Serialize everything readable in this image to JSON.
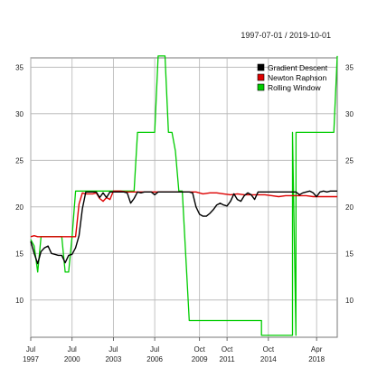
{
  "header": {
    "date_range": "1997-07-01 / 2019-10-01"
  },
  "chart_data": {
    "type": "line",
    "title": "",
    "xlabel": "",
    "ylabel": "",
    "x_axis": {
      "type": "date",
      "range": [
        "1997-07-01",
        "2019-10-01"
      ],
      "ticks": [
        {
          "date": "1997-07-01",
          "month": "Jul",
          "year": "1997"
        },
        {
          "date": "2000-07-01",
          "month": "Jul",
          "year": "2000"
        },
        {
          "date": "2003-07-01",
          "month": "Jul",
          "year": "2003"
        },
        {
          "date": "2006-07-01",
          "month": "Jul",
          "year": "2006"
        },
        {
          "date": "2009-10-01",
          "month": "Oct",
          "year": "2009"
        },
        {
          "date": "2011-10-01",
          "month": "Oct",
          "year": "2011"
        },
        {
          "date": "2014-10-01",
          "month": "Oct",
          "year": "2014"
        },
        {
          "date": "2018-04-01",
          "month": "Apr",
          "year": "2018"
        }
      ]
    },
    "y_axis": {
      "range": [
        6,
        36
      ],
      "ticks": [
        10,
        15,
        20,
        25,
        30,
        35
      ],
      "sides": [
        "left",
        "right"
      ]
    },
    "grid": true,
    "legend": {
      "placement": "top-right",
      "entries": [
        {
          "label": "Gradient Descent",
          "color": "#000000"
        },
        {
          "label": "Newton Raphson",
          "color": "#dd0000"
        },
        {
          "label": "Rolling Window",
          "color": "#00cc00"
        }
      ]
    },
    "series": [
      {
        "name": "Gradient Descent",
        "color": "#000000",
        "points": [
          [
            "1997-07-01",
            16.3
          ],
          [
            "1997-10-01",
            15.0
          ],
          [
            "1998-01-01",
            13.9
          ],
          [
            "1998-04-01",
            15.2
          ],
          [
            "1998-07-01",
            15.6
          ],
          [
            "1998-10-01",
            15.8
          ],
          [
            "1999-01-01",
            15.0
          ],
          [
            "1999-04-01",
            14.9
          ],
          [
            "1999-07-01",
            14.8
          ],
          [
            "1999-10-01",
            14.8
          ],
          [
            "2000-01-01",
            14.0
          ],
          [
            "2000-04-01",
            14.8
          ],
          [
            "2000-07-01",
            14.9
          ],
          [
            "2000-10-01",
            15.6
          ],
          [
            "2001-01-01",
            16.9
          ],
          [
            "2001-04-01",
            19.8
          ],
          [
            "2001-07-01",
            21.6
          ],
          [
            "2001-10-01",
            21.6
          ],
          [
            "2002-01-01",
            21.6
          ],
          [
            "2002-04-01",
            21.6
          ],
          [
            "2002-07-01",
            21.0
          ],
          [
            "2002-10-01",
            21.5
          ],
          [
            "2003-01-01",
            21.0
          ],
          [
            "2003-04-01",
            21.6
          ],
          [
            "2003-07-01",
            21.6
          ],
          [
            "2003-10-01",
            21.6
          ],
          [
            "2004-01-01",
            21.6
          ],
          [
            "2004-04-01",
            21.6
          ],
          [
            "2004-07-01",
            21.5
          ],
          [
            "2004-10-01",
            20.4
          ],
          [
            "2005-01-01",
            20.9
          ],
          [
            "2005-04-01",
            21.6
          ],
          [
            "2005-07-01",
            21.5
          ],
          [
            "2005-10-01",
            21.6
          ],
          [
            "2006-01-01",
            21.6
          ],
          [
            "2006-04-01",
            21.6
          ],
          [
            "2006-07-01",
            21.3
          ],
          [
            "2006-10-01",
            21.6
          ],
          [
            "2007-01-01",
            21.6
          ],
          [
            "2007-04-01",
            21.6
          ],
          [
            "2007-07-01",
            21.6
          ],
          [
            "2007-10-01",
            21.6
          ],
          [
            "2008-01-01",
            21.6
          ],
          [
            "2008-04-01",
            21.6
          ],
          [
            "2008-07-01",
            21.6
          ],
          [
            "2008-10-01",
            21.6
          ],
          [
            "2009-01-01",
            21.6
          ],
          [
            "2009-04-01",
            21.5
          ],
          [
            "2009-07-01",
            20.0
          ],
          [
            "2009-10-01",
            19.2
          ],
          [
            "2010-01-01",
            19.0
          ],
          [
            "2010-04-01",
            19.0
          ],
          [
            "2010-07-01",
            19.3
          ],
          [
            "2010-10-01",
            19.7
          ],
          [
            "2011-01-01",
            20.2
          ],
          [
            "2011-04-01",
            20.4
          ],
          [
            "2011-07-01",
            20.2
          ],
          [
            "2011-10-01",
            20.1
          ],
          [
            "2012-01-01",
            20.6
          ],
          [
            "2012-04-01",
            21.4
          ],
          [
            "2012-07-01",
            20.8
          ],
          [
            "2012-10-01",
            20.6
          ],
          [
            "2013-01-01",
            21.2
          ],
          [
            "2013-04-01",
            21.5
          ],
          [
            "2013-07-01",
            21.3
          ],
          [
            "2013-10-01",
            20.8
          ],
          [
            "2014-01-01",
            21.6
          ],
          [
            "2014-04-01",
            21.6
          ],
          [
            "2014-07-01",
            21.6
          ],
          [
            "2014-10-01",
            21.6
          ],
          [
            "2015-01-01",
            21.6
          ],
          [
            "2015-04-01",
            21.6
          ],
          [
            "2015-07-01",
            21.6
          ],
          [
            "2015-10-01",
            21.6
          ],
          [
            "2016-01-01",
            21.6
          ],
          [
            "2016-04-01",
            21.6
          ],
          [
            "2016-07-01",
            21.6
          ],
          [
            "2016-10-01",
            21.6
          ],
          [
            "2017-01-01",
            21.3
          ],
          [
            "2017-04-01",
            21.5
          ],
          [
            "2017-07-01",
            21.6
          ],
          [
            "2017-10-01",
            21.7
          ],
          [
            "2018-01-01",
            21.5
          ],
          [
            "2018-04-01",
            21.1
          ],
          [
            "2018-07-01",
            21.6
          ],
          [
            "2018-10-01",
            21.7
          ],
          [
            "2019-01-01",
            21.6
          ],
          [
            "2019-04-01",
            21.7
          ],
          [
            "2019-07-01",
            21.7
          ],
          [
            "2019-10-01",
            21.7
          ]
        ]
      },
      {
        "name": "Newton Raphson",
        "color": "#dd0000",
        "points": [
          [
            "1997-07-01",
            16.8
          ],
          [
            "1997-10-01",
            16.9
          ],
          [
            "1998-01-01",
            16.8
          ],
          [
            "1998-07-01",
            16.8
          ],
          [
            "1999-01-01",
            16.8
          ],
          [
            "1999-07-01",
            16.8
          ],
          [
            "2000-01-01",
            16.8
          ],
          [
            "2000-07-01",
            16.8
          ],
          [
            "2000-10-01",
            16.8
          ],
          [
            "2001-01-01",
            20.3
          ],
          [
            "2001-04-01",
            21.5
          ],
          [
            "2001-07-01",
            21.4
          ],
          [
            "2002-01-01",
            21.4
          ],
          [
            "2002-04-01",
            21.5
          ],
          [
            "2002-07-01",
            20.9
          ],
          [
            "2002-10-01",
            20.6
          ],
          [
            "2003-01-01",
            21.0
          ],
          [
            "2003-04-01",
            20.8
          ],
          [
            "2003-07-01",
            21.7
          ],
          [
            "2004-01-01",
            21.7
          ],
          [
            "2004-07-01",
            21.6
          ],
          [
            "2005-01-01",
            21.6
          ],
          [
            "2005-07-01",
            21.6
          ],
          [
            "2006-01-01",
            21.6
          ],
          [
            "2006-07-01",
            21.6
          ],
          [
            "2007-01-01",
            21.6
          ],
          [
            "2007-07-01",
            21.6
          ],
          [
            "2008-01-01",
            21.6
          ],
          [
            "2008-07-01",
            21.6
          ],
          [
            "2009-01-01",
            21.6
          ],
          [
            "2009-07-01",
            21.6
          ],
          [
            "2010-01-01",
            21.4
          ],
          [
            "2010-07-01",
            21.5
          ],
          [
            "2011-01-01",
            21.5
          ],
          [
            "2011-07-01",
            21.4
          ],
          [
            "2012-01-01",
            21.3
          ],
          [
            "2012-07-01",
            21.4
          ],
          [
            "2013-01-01",
            21.3
          ],
          [
            "2013-07-01",
            21.3
          ],
          [
            "2014-01-01",
            21.3
          ],
          [
            "2014-07-01",
            21.3
          ],
          [
            "2015-01-01",
            21.2
          ],
          [
            "2015-07-01",
            21.1
          ],
          [
            "2016-01-01",
            21.2
          ],
          [
            "2016-07-01",
            21.2
          ],
          [
            "2017-01-01",
            21.2
          ],
          [
            "2017-07-01",
            21.2
          ],
          [
            "2018-01-01",
            21.1
          ],
          [
            "2018-07-01",
            21.1
          ],
          [
            "2019-01-01",
            21.1
          ],
          [
            "2019-10-01",
            21.1
          ]
        ]
      },
      {
        "name": "Rolling Window",
        "color": "#00cc00",
        "points": [
          [
            "1997-07-01",
            16.5
          ],
          [
            "1997-10-01",
            15.8
          ],
          [
            "1998-01-01",
            13.0
          ],
          [
            "1998-04-01",
            16.8
          ],
          [
            "1998-07-01",
            16.8
          ],
          [
            "1999-01-01",
            16.8
          ],
          [
            "1999-04-01",
            16.8
          ],
          [
            "1999-07-01",
            16.8
          ],
          [
            "1999-10-01",
            16.8
          ],
          [
            "2000-01-01",
            13.0
          ],
          [
            "2000-04-01",
            13.0
          ],
          [
            "2000-07-01",
            16.8
          ],
          [
            "2000-10-01",
            21.7
          ],
          [
            "2001-01-01",
            21.7
          ],
          [
            "2001-04-01",
            21.7
          ],
          [
            "2001-07-01",
            21.7
          ],
          [
            "2002-01-01",
            21.7
          ],
          [
            "2002-07-01",
            21.7
          ],
          [
            "2003-01-01",
            21.7
          ],
          [
            "2003-07-01",
            21.7
          ],
          [
            "2004-01-01",
            21.7
          ],
          [
            "2004-07-01",
            21.7
          ],
          [
            "2005-01-01",
            21.7
          ],
          [
            "2005-04-01",
            28.0
          ],
          [
            "2005-10-01",
            28.0
          ],
          [
            "2006-04-01",
            28.0
          ],
          [
            "2006-07-01",
            28.0
          ],
          [
            "2006-10-01",
            36.2
          ],
          [
            "2007-04-01",
            36.2
          ],
          [
            "2007-07-01",
            28.0
          ],
          [
            "2007-10-01",
            28.0
          ],
          [
            "2008-01-01",
            26.0
          ],
          [
            "2008-04-01",
            21.7
          ],
          [
            "2008-07-01",
            21.7
          ],
          [
            "2009-01-01",
            7.8
          ],
          [
            "2010-01-01",
            7.8
          ],
          [
            "2011-01-01",
            7.8
          ],
          [
            "2012-01-01",
            7.8
          ],
          [
            "2013-01-01",
            7.8
          ],
          [
            "2014-04-01",
            7.8
          ],
          [
            "2014-04-02",
            6.2
          ],
          [
            "2015-01-01",
            6.2
          ],
          [
            "2016-01-01",
            6.2
          ],
          [
            "2016-07-01",
            6.2
          ],
          [
            "2016-07-02",
            28.0
          ],
          [
            "2016-10-01",
            6.2
          ],
          [
            "2016-10-02",
            28.0
          ],
          [
            "2017-07-01",
            28.0
          ],
          [
            "2018-07-01",
            28.0
          ],
          [
            "2019-07-01",
            28.0
          ],
          [
            "2019-10-01",
            36.2
          ]
        ]
      }
    ]
  }
}
